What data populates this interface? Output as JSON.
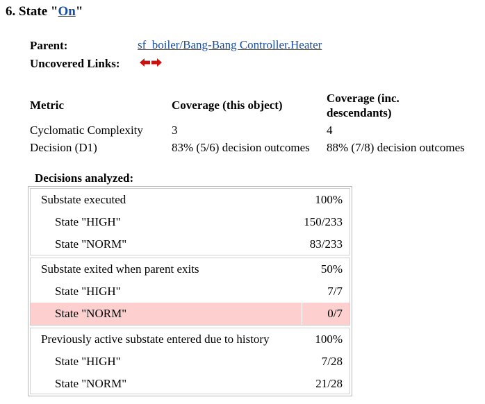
{
  "title": {
    "prefix": "6. State \"",
    "link": "On",
    "suffix": "\""
  },
  "info": {
    "parent_label": "Parent:",
    "parent_link": "sf_boiler/Bang-Bang Controller.Heater",
    "uncovered_label": "Uncovered Links:",
    "arrow_color": "#cc1111"
  },
  "metrics": {
    "headers": {
      "metric": "Metric",
      "this_object": "Coverage (this object)",
      "descendants_line1": "Coverage (inc.",
      "descendants_line2": "descendants)"
    },
    "rows": [
      {
        "metric": "Cyclomatic Complexity",
        "this_object": "3",
        "descendants": "4"
      },
      {
        "metric": "Decision (D1)",
        "this_object": "83% (5/6) decision outcomes",
        "descendants": "88% (7/8) decision outcomes"
      }
    ]
  },
  "decisions": {
    "title": "Decisions analyzed:",
    "highlight_color": "#fdcfcf",
    "groups": [
      {
        "label": "Substate executed",
        "value": "100%",
        "items": [
          {
            "label": "State \"HIGH\"",
            "value": "150/233"
          },
          {
            "label": "State \"NORM\"",
            "value": "83/233"
          }
        ]
      },
      {
        "label": "Substate exited when parent exits",
        "value": "50%",
        "items": [
          {
            "label": "State \"HIGH\"",
            "value": "7/7"
          },
          {
            "label": "State \"NORM\"",
            "value": "0/7",
            "highlight": true
          }
        ]
      },
      {
        "label": "Previously active substate entered due to history",
        "value": "100%",
        "items": [
          {
            "label": "State \"HIGH\"",
            "value": "7/28"
          },
          {
            "label": "State \"NORM\"",
            "value": "21/28"
          }
        ]
      }
    ]
  }
}
